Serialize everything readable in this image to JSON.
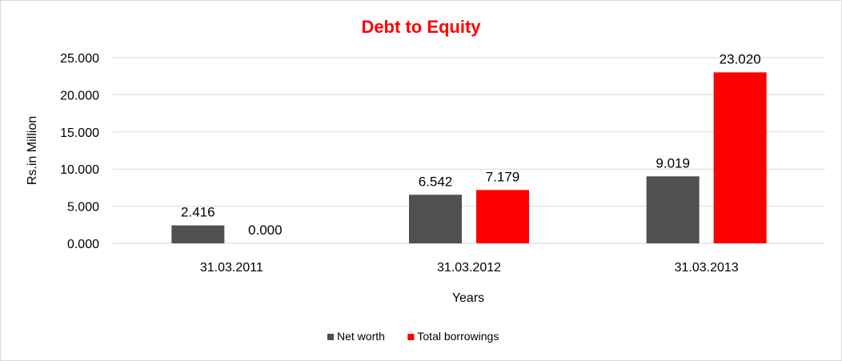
{
  "chart_data": {
    "type": "bar",
    "title": "Debt to Equity",
    "xlabel": "Years",
    "ylabel": "Rs.in Million",
    "categories": [
      "31.03.2011",
      "31.03.2012",
      "31.03.2013"
    ],
    "series": [
      {
        "name": "Net worth",
        "values": [
          2.416,
          6.542,
          9.019
        ],
        "labels": [
          "2.416",
          "6.542",
          "9.019"
        ],
        "color": "#505050"
      },
      {
        "name": "Total borrowings",
        "values": [
          0.0,
          7.179,
          23.02
        ],
        "labels": [
          "0.000",
          "7.179",
          "23.020"
        ],
        "color": "#ff0000"
      }
    ],
    "ylim": [
      0,
      25
    ],
    "yticks": [
      0,
      5,
      10,
      15,
      20,
      25
    ],
    "ytick_labels": [
      "0.000",
      "5.000",
      "10.000",
      "15.000",
      "20.000",
      "25.000"
    ],
    "grid": true,
    "legend_position": "bottom",
    "title_color": "#ff0000",
    "gridline_color": "#d9d9d9"
  }
}
